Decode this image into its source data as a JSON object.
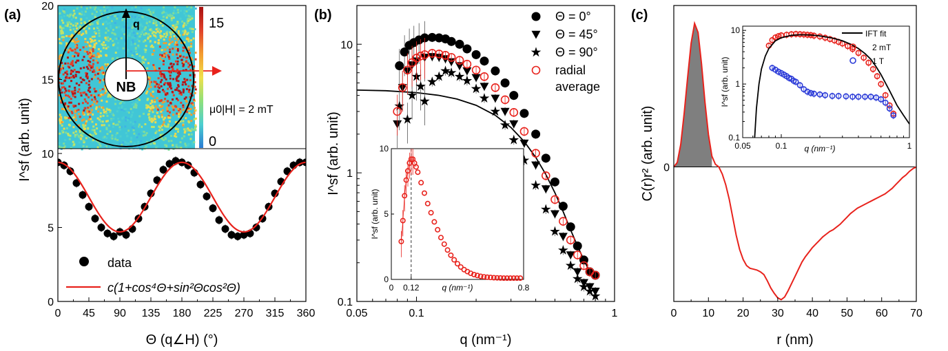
{
  "panels": {
    "a": {
      "label": "(a)"
    },
    "b": {
      "label": "(b)"
    },
    "c": {
      "label": "(c)"
    }
  },
  "inset_a": {
    "q_label": "q",
    "nb_label": "NB",
    "field_label": "μ0|H| = 2 mT",
    "colorbar_ticks": [
      "15",
      "0"
    ]
  },
  "colors": {
    "red": "#e8221c",
    "black": "#000000",
    "blue": "#2b3bd8",
    "gray": "#7f7f7f"
  },
  "chart_data": [
    {
      "id": "a-main",
      "type": "scatter",
      "xlabel": "Θ  (q∠H) (°)",
      "ylabel": "I^sf (arb. unit)",
      "xlim": [
        0,
        360
      ],
      "ylim": [
        0,
        20
      ],
      "xticks": [
        "0",
        "45",
        "90",
        "135",
        "180",
        "225",
        "270",
        "315",
        "360"
      ],
      "yticks": [
        "0",
        "5",
        "10",
        "15",
        "20"
      ],
      "legend": [
        "data",
        "c(1+cos⁴Θ+sin²Θcos²Θ)"
      ],
      "series": [
        {
          "name": "data",
          "kind": "points",
          "x": [
            0,
            9,
            18,
            27,
            36,
            45,
            54,
            63,
            72,
            81,
            90,
            99,
            108,
            117,
            126,
            135,
            144,
            153,
            162,
            171,
            180,
            189,
            198,
            207,
            216,
            225,
            234,
            243,
            252,
            261,
            270,
            279,
            288,
            297,
            306,
            315,
            324,
            333,
            342,
            351,
            360
          ],
          "y": [
            9.4,
            9.2,
            8.8,
            8.0,
            7.2,
            6.4,
            5.6,
            5.0,
            4.6,
            4.4,
            4.7,
            4.5,
            4.9,
            5.6,
            6.4,
            7.3,
            8.2,
            8.9,
            9.3,
            9.5,
            9.4,
            9.2,
            8.7,
            7.9,
            7.1,
            6.3,
            5.5,
            4.9,
            4.5,
            4.4,
            4.5,
            4.6,
            5.0,
            5.6,
            6.4,
            7.3,
            8.1,
            8.8,
            9.2,
            9.4,
            9.4
          ]
        },
        {
          "name": "c(1+cos⁴Θ+sin²Θcos²Θ)",
          "kind": "fit",
          "c": 4.7
        }
      ]
    },
    {
      "id": "b-main",
      "type": "scatter",
      "xlabel": "q (nm⁻¹)",
      "ylabel": "I^sf (arb. unit)",
      "xscale": "log",
      "yscale": "log",
      "xlim": [
        0.05,
        1.0
      ],
      "ylim": [
        0.1,
        20
      ],
      "xticks": [
        "0.05",
        "0.1",
        "1"
      ],
      "yticks": [
        "0.1",
        "1",
        "10"
      ],
      "legend": [
        "Θ = 0°",
        "Θ = 45°",
        "Θ = 90°",
        "radial average"
      ],
      "series": [
        {
          "name": "Θ = 0°",
          "marker": "circle",
          "x": [
            0.082,
            0.087,
            0.092,
            0.097,
            0.103,
            0.11,
            0.12,
            0.13,
            0.14,
            0.15,
            0.165,
            0.18,
            0.2,
            0.22,
            0.25,
            0.28,
            0.31,
            0.35,
            0.4,
            0.45,
            0.5,
            0.55,
            0.6,
            0.65,
            0.7,
            0.75,
            0.8
          ],
          "y": [
            6.8,
            8.7,
            9.8,
            10.3,
            10.8,
            11.2,
            11.3,
            11.2,
            11.0,
            10.5,
            10.0,
            9.2,
            8.3,
            7.4,
            6.2,
            5.0,
            4.0,
            2.9,
            2.0,
            1.3,
            0.85,
            0.55,
            0.38,
            0.27,
            0.21,
            0.17,
            0.16
          ]
        },
        {
          "name": "Θ = 45°",
          "marker": "triangle-down",
          "x": [
            0.08,
            0.085,
            0.09,
            0.095,
            0.1,
            0.11,
            0.12,
            0.13,
            0.14,
            0.15,
            0.165,
            0.18,
            0.2,
            0.22,
            0.25,
            0.28,
            0.31,
            0.35,
            0.4,
            0.45,
            0.5,
            0.55,
            0.6,
            0.65,
            0.7,
            0.75,
            0.8
          ],
          "y": [
            2.4,
            4.6,
            6.2,
            6.9,
            7.4,
            7.9,
            8.0,
            7.9,
            7.7,
            7.3,
            6.8,
            6.2,
            5.5,
            4.7,
            3.8,
            3.0,
            2.4,
            1.7,
            1.15,
            0.75,
            0.48,
            0.32,
            0.23,
            0.17,
            0.14,
            0.13,
            0.12
          ]
        },
        {
          "name": "Θ = 90°",
          "marker": "star",
          "x": [
            0.082,
            0.09,
            0.095,
            0.1,
            0.105,
            0.11,
            0.12,
            0.13,
            0.14,
            0.15,
            0.165,
            0.18,
            0.2,
            0.22,
            0.25,
            0.28,
            0.31,
            0.35,
            0.4,
            0.45,
            0.5,
            0.55,
            0.6,
            0.65,
            0.7,
            0.75,
            0.8
          ],
          "y": [
            3.3,
            2.6,
            4.0,
            5.6,
            4.7,
            3.6,
            5.1,
            5.6,
            6.2,
            6.0,
            5.6,
            5.2,
            4.5,
            3.8,
            3.0,
            2.35,
            1.8,
            1.25,
            0.8,
            0.52,
            0.35,
            0.25,
            0.19,
            0.15,
            0.13,
            0.12,
            0.11
          ]
        },
        {
          "name": "radial average",
          "marker": "open-circle",
          "x": [
            0.08,
            0.085,
            0.09,
            0.095,
            0.1,
            0.105,
            0.11,
            0.12,
            0.13,
            0.14,
            0.15,
            0.165,
            0.18,
            0.2,
            0.22,
            0.25,
            0.28,
            0.31,
            0.35,
            0.4,
            0.45,
            0.5,
            0.55,
            0.6,
            0.65,
            0.7,
            0.75,
            0.8
          ],
          "y": [
            3.0,
            4.6,
            6.3,
            7.2,
            7.8,
            8.1,
            8.3,
            8.5,
            8.4,
            8.2,
            7.9,
            7.5,
            7.0,
            6.3,
            5.6,
            4.6,
            3.7,
            2.95,
            2.1,
            1.42,
            0.95,
            0.62,
            0.42,
            0.3,
            0.23,
            0.19,
            0.17,
            0.16
          ]
        },
        {
          "name": "fit",
          "kind": "line",
          "x": [
            0.05,
            0.07,
            0.1,
            0.13,
            0.16,
            0.2,
            0.25,
            0.3,
            0.35,
            0.4,
            0.45,
            0.5,
            0.55,
            0.6,
            0.65,
            0.7,
            0.75,
            0.8
          ],
          "y": [
            4.4,
            4.35,
            4.2,
            4.0,
            3.75,
            3.35,
            2.8,
            2.25,
            1.75,
            1.32,
            0.97,
            0.7,
            0.5,
            0.36,
            0.27,
            0.21,
            0.17,
            0.16
          ]
        }
      ]
    },
    {
      "id": "b-inset",
      "type": "scatter",
      "xlabel": "q (nm⁻¹)",
      "ylabel": "I^sf (arb. unit)",
      "xlim": [
        0,
        0.8
      ],
      "ylim": [
        0,
        10
      ],
      "xticks": [
        "0",
        "0.12",
        "0.8"
      ],
      "yticks": [
        "0",
        "5",
        "10"
      ],
      "vline": 0.12,
      "series": [
        {
          "name": "radial average",
          "marker": "open-circle",
          "x": [
            0.06,
            0.07,
            0.08,
            0.09,
            0.1,
            0.11,
            0.12,
            0.13,
            0.14,
            0.15,
            0.16,
            0.18,
            0.2,
            0.22,
            0.24,
            0.26,
            0.28,
            0.3,
            0.32,
            0.34,
            0.36,
            0.38,
            0.4,
            0.42,
            0.44,
            0.46,
            0.48,
            0.5,
            0.52,
            0.54,
            0.56,
            0.58,
            0.6,
            0.62,
            0.64,
            0.66,
            0.68,
            0.7,
            0.72,
            0.74,
            0.76,
            0.78
          ],
          "y": [
            2.9,
            4.5,
            6.4,
            7.6,
            8.3,
            8.9,
            9.2,
            9.2,
            8.9,
            8.6,
            8.2,
            7.4,
            6.6,
            5.8,
            5.1,
            4.4,
            3.8,
            3.2,
            2.7,
            2.25,
            1.85,
            1.5,
            1.2,
            0.95,
            0.75,
            0.6,
            0.47,
            0.37,
            0.3,
            0.24,
            0.2,
            0.17,
            0.15,
            0.13,
            0.12,
            0.11,
            0.1,
            0.1,
            0.1,
            0.1,
            0.1,
            0.1
          ]
        }
      ]
    },
    {
      "id": "c-main",
      "type": "line",
      "xlabel": "r (nm)",
      "ylabel": "C(r)r² (arb. unit)",
      "xlim": [
        0,
        70
      ],
      "ylim": [
        -1.5,
        1.8
      ],
      "xticks": [
        "0",
        "10",
        "20",
        "30",
        "40",
        "50",
        "60",
        "70"
      ],
      "yticks": [
        "0"
      ],
      "series": [
        {
          "name": "C(r)r²",
          "x": [
            0,
            1,
            2,
            3,
            4,
            5,
            6,
            7,
            8,
            9,
            10,
            11,
            12,
            13,
            14,
            15,
            16,
            17,
            18,
            19,
            20,
            21,
            22,
            23,
            24,
            25,
            26,
            27,
            28,
            29,
            30,
            31,
            32,
            33,
            34,
            35,
            36,
            37,
            38,
            39,
            40,
            41,
            42,
            43,
            44,
            45,
            46,
            47,
            48,
            49,
            50,
            51,
            52,
            53,
            54,
            55,
            56,
            57,
            58,
            59,
            60,
            61,
            62,
            63,
            64,
            65,
            66,
            67,
            68,
            69,
            70
          ],
          "y": [
            0,
            0.05,
            0.25,
            0.6,
            1.0,
            1.38,
            1.6,
            1.5,
            1.15,
            0.72,
            0.36,
            0.12,
            0.03,
            0,
            -0.08,
            -0.2,
            -0.36,
            -0.56,
            -0.76,
            -0.92,
            -1.03,
            -1.1,
            -1.13,
            -1.14,
            -1.15,
            -1.17,
            -1.2,
            -1.27,
            -1.35,
            -1.41,
            -1.46,
            -1.48,
            -1.45,
            -1.38,
            -1.3,
            -1.22,
            -1.14,
            -1.06,
            -1.0,
            -0.95,
            -0.9,
            -0.86,
            -0.82,
            -0.78,
            -0.75,
            -0.72,
            -0.7,
            -0.67,
            -0.64,
            -0.6,
            -0.56,
            -0.52,
            -0.49,
            -0.46,
            -0.44,
            -0.42,
            -0.4,
            -0.38,
            -0.36,
            -0.34,
            -0.32,
            -0.3,
            -0.27,
            -0.24,
            -0.2,
            -0.16,
            -0.12,
            -0.09,
            -0.05,
            -0.02,
            0
          ]
        },
        {
          "name": "shaded",
          "kind": "area",
          "x_range": [
            0,
            11
          ]
        }
      ]
    },
    {
      "id": "c-inset",
      "type": "scatter",
      "xlabel": "q (nm⁻¹)",
      "ylabel": "I^sf (arb. unit)",
      "xscale": "log",
      "yscale": "log",
      "xlim": [
        0.05,
        1.0
      ],
      "ylim": [
        0.1,
        12
      ],
      "xticks": [
        "0.05",
        "0.1",
        "1"
      ],
      "yticks": [
        "0.1",
        "1",
        "10"
      ],
      "legend": [
        "IFT fit",
        "2 mT",
        "1 T"
      ],
      "series": [
        {
          "name": "IFT fit",
          "kind": "line",
          "x": [
            0.062,
            0.064,
            0.067,
            0.07,
            0.075,
            0.08,
            0.09,
            0.1,
            0.12,
            0.14,
            0.17,
            0.2,
            0.25,
            0.3,
            0.35,
            0.4,
            0.45,
            0.5,
            0.55,
            0.6,
            0.7,
            0.8,
            0.9,
            1.0
          ],
          "y": [
            0.1,
            0.35,
            1.0,
            1.9,
            3.3,
            4.6,
            6.4,
            7.3,
            8.1,
            8.3,
            8.2,
            7.9,
            7.2,
            6.4,
            5.5,
            4.6,
            3.7,
            2.9,
            2.1,
            1.5,
            0.75,
            0.4,
            0.26,
            0.18
          ]
        },
        {
          "name": "2 mT",
          "marker": "open-circle",
          "color": "red",
          "x": [
            0.08,
            0.085,
            0.09,
            0.095,
            0.1,
            0.11,
            0.12,
            0.13,
            0.14,
            0.15,
            0.16,
            0.17,
            0.18,
            0.2,
            0.22,
            0.24,
            0.26,
            0.28,
            0.3,
            0.33,
            0.36,
            0.4,
            0.44,
            0.48,
            0.52,
            0.56,
            0.6,
            0.65,
            0.7,
            0.75
          ],
          "y": [
            5.2,
            6.6,
            7.4,
            7.8,
            8.1,
            8.3,
            8.5,
            8.6,
            8.5,
            8.4,
            8.3,
            8.2,
            8.0,
            7.7,
            7.3,
            6.9,
            6.5,
            6.1,
            5.7,
            5.1,
            4.5,
            3.8,
            3.1,
            2.5,
            1.9,
            1.4,
            1.0,
            0.62,
            0.4,
            0.28
          ]
        },
        {
          "name": "1 T",
          "marker": "open-circle",
          "color": "blue",
          "x": [
            0.085,
            0.09,
            0.095,
            0.1,
            0.105,
            0.11,
            0.115,
            0.12,
            0.125,
            0.13,
            0.14,
            0.15,
            0.16,
            0.17,
            0.18,
            0.2,
            0.22,
            0.25,
            0.28,
            0.32,
            0.36,
            0.4,
            0.45,
            0.5,
            0.55,
            0.6,
            0.65,
            0.7,
            0.75
          ],
          "y": [
            2.0,
            1.85,
            1.7,
            1.6,
            1.5,
            1.4,
            1.3,
            1.25,
            1.15,
            1.1,
            0.95,
            0.8,
            0.72,
            0.68,
            0.66,
            0.64,
            0.62,
            0.6,
            0.6,
            0.59,
            0.58,
            0.58,
            0.58,
            0.58,
            0.56,
            0.52,
            0.45,
            0.35,
            0.26
          ]
        }
      ]
    }
  ]
}
